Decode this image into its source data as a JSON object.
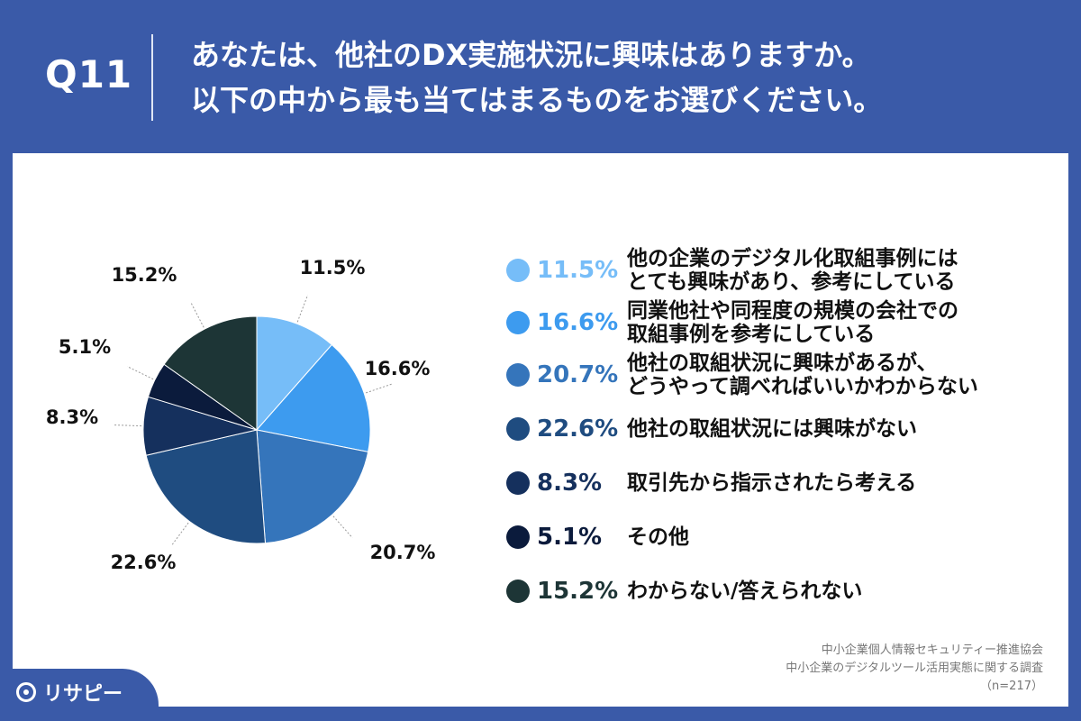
{
  "header": {
    "question_number": "Q11",
    "title_line1": "あなたは、他社のDX実施状況に興味はありますか。",
    "title_line2": "以下の中から最も当てはまるものをお選びください。"
  },
  "chart_data": {
    "type": "pie",
    "categories": [
      "他の企業のデジタル化取組事例にはとても興味があり、参考にしている",
      "同業他社や同程度の規模の会社での取組事例を参考にしている",
      "他社の取組状況に興味があるが、どうやって調べればいいかわからない",
      "他社の取組状況には興味がない",
      "取引先から指示されたら考える",
      "その他",
      "わからない/答えられない"
    ],
    "values": [
      11.5,
      16.6,
      20.7,
      22.6,
      8.3,
      5.1,
      15.2
    ],
    "value_labels": [
      "11.5%",
      "16.6%",
      "20.7%",
      "22.6%",
      "8.3%",
      "5.1%",
      "15.2%"
    ],
    "colors": [
      "#76bdf8",
      "#3d9bef",
      "#3575bb",
      "#1f4c80",
      "#15305d",
      "#0b1b3c",
      "#1d3536"
    ],
    "legend_placement": "right"
  },
  "legend": [
    {
      "pct": "11.5%",
      "lines": [
        "他の企業のデジタル化取組事例には",
        "とても興味があり、参考にしている"
      ],
      "color": "#76bdf8"
    },
    {
      "pct": "16.6%",
      "lines": [
        "同業他社や同程度の規模の会社での",
        "取組事例を参考にしている"
      ],
      "color": "#3d9bef"
    },
    {
      "pct": "20.7%",
      "lines": [
        "他社の取組状況に興味があるが、",
        "どうやって調べればいいかわからない"
      ],
      "color": "#3575bb"
    },
    {
      "pct": "22.6%",
      "lines": [
        "他社の取組状況には興味がない"
      ],
      "color": "#1f4c80"
    },
    {
      "pct": "8.3%",
      "lines": [
        "取引先から指示されたら考える"
      ],
      "color": "#15305d"
    },
    {
      "pct": "5.1%",
      "lines": [
        "その他"
      ],
      "color": "#0b1b3c"
    },
    {
      "pct": "15.2%",
      "lines": [
        "わからない/答えられない"
      ],
      "color": "#1d3536"
    }
  ],
  "source": {
    "line1": "中小企業個人情報セキュリティー推進協会",
    "line2": "中小企業のデジタルツール活用実態に関する調査",
    "line3": "（n=217）"
  },
  "logo": {
    "text": "リサピー"
  }
}
